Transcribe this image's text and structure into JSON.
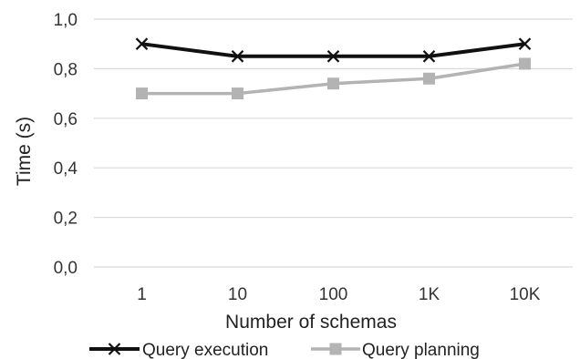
{
  "chart_data": {
    "type": "line",
    "xlabel": "Number of schemas",
    "ylabel": "Time (s)",
    "categories": [
      "1",
      "10",
      "100",
      "1K",
      "10K"
    ],
    "ylim": [
      0,
      1.0
    ],
    "yticks": [
      "0,0",
      "0,2",
      "0,4",
      "0,6",
      "0,8",
      "1,0"
    ],
    "grid": true,
    "legend_position": "bottom",
    "series": [
      {
        "name": "Query execution",
        "values": [
          0.9,
          0.85,
          0.85,
          0.85,
          0.9
        ],
        "color": "#111111",
        "marker": "x"
      },
      {
        "name": "Query planning",
        "values": [
          0.7,
          0.7,
          0.74,
          0.76,
          0.82
        ],
        "color": "#b3b3b3",
        "marker": "square"
      }
    ]
  }
}
